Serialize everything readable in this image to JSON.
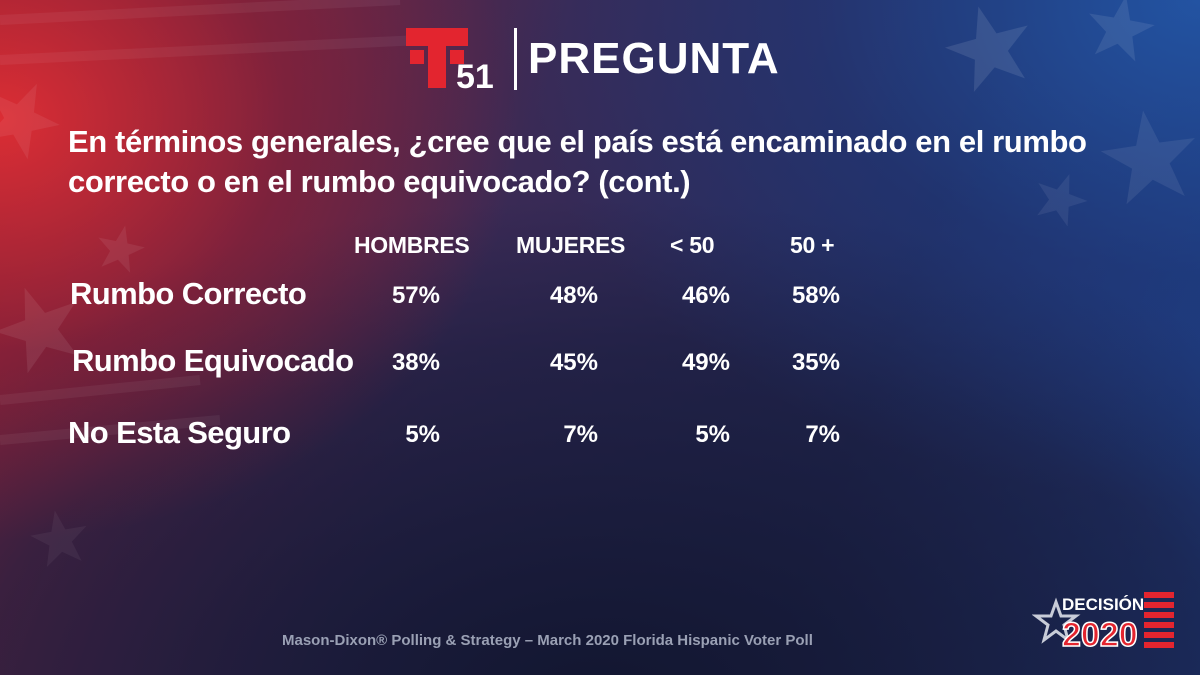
{
  "header": {
    "logo_number": "51",
    "title": "PREGUNTA"
  },
  "question": "En términos generales, ¿cree que el país está encaminado en el rumbo correcto o en el rumbo equivocado?  (cont.)",
  "chart_data": {
    "type": "table",
    "columns": [
      "HOMBRES",
      "MUJERES",
      "< 50",
      "50 +"
    ],
    "rows": [
      {
        "label": "Rumbo Correcto",
        "values": [
          "57%",
          "48%",
          "46%",
          "58%"
        ]
      },
      {
        "label": "Rumbo Equivocado",
        "values": [
          "38%",
          "45%",
          "49%",
          "35%"
        ]
      },
      {
        "label": "No Esta Seguro",
        "values": [
          "5%",
          "7%",
          "5%",
          "7%"
        ]
      }
    ]
  },
  "footer": {
    "source": "Mason-Dixon® Polling & Strategy – March 2020 Florida Hispanic Voter Poll",
    "badge_top": "DECISIÓN",
    "badge_year": "2020"
  },
  "colors": {
    "brand_red": "#e3252f",
    "text": "#ffffff",
    "source_text": "#9aa0b4"
  }
}
